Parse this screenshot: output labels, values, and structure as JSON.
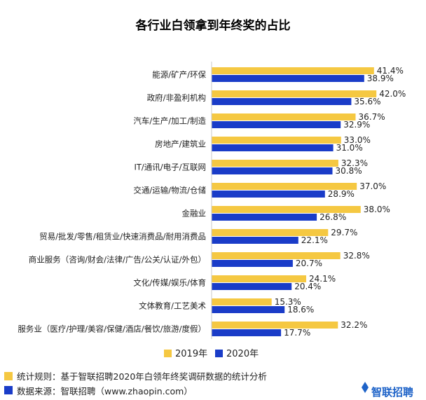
{
  "chart_data": {
    "type": "bar",
    "orientation": "horizontal",
    "title": "各行业白领拿到年终奖的占比",
    "categories": [
      "能源/矿产/环保",
      "政府/非盈利机构",
      "汽车/生产/加工/制造",
      "房地产/建筑业",
      "IT/通讯/电子/互联网",
      "交通/运输/物流/仓储",
      "金融业",
      "贸易/批发/零售/租赁业/快速消费品/耐用消费品",
      "商业服务（咨询/财会/法律/广告/公关/认证/外包）",
      "文化/传媒/娱乐/体育",
      "文体教育/工艺美术",
      "服务业（医疗/护理/美容/保健/酒店/餐饮/旅游/度假）"
    ],
    "series": [
      {
        "name": "2019年",
        "color": "#F5C842",
        "values": [
          41.4,
          42.0,
          36.7,
          33.0,
          32.3,
          37.0,
          38.0,
          29.7,
          32.8,
          24.1,
          15.3,
          32.2
        ],
        "labels": [
          "41.4%",
          "42.0%",
          "36.7%",
          "33.0%",
          "32.3%",
          "37.0%",
          "38.0%",
          "29.7%",
          "32.8%",
          "24.1%",
          "15.3%",
          "32.2%"
        ]
      },
      {
        "name": "2020年",
        "color": "#1A3CC8",
        "values": [
          38.9,
          35.6,
          32.9,
          31.0,
          30.8,
          28.9,
          26.8,
          22.1,
          20.7,
          20.4,
          18.6,
          17.7
        ],
        "labels": [
          "38.9%",
          "35.6%",
          "32.9%",
          "31.0%",
          "30.8%",
          "28.9%",
          "26.8%",
          "22.1%",
          "20.7%",
          "20.4%",
          "18.6%",
          "17.7%"
        ]
      }
    ],
    "xlim": [
      0,
      50
    ],
    "grid": false,
    "legend_placement": "bottom-center"
  },
  "footer": {
    "rule": "统计规则：基于智联招聘2020年白领年终奖调研数据的统计分析",
    "source": "数据来源：智联招聘（www.zhaopin.com）",
    "brand": "智联招聘"
  }
}
